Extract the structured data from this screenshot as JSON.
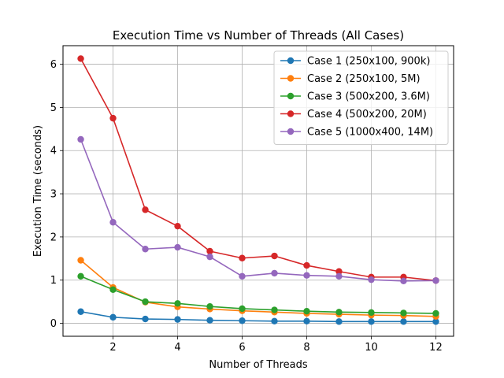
{
  "chart_data": {
    "type": "line",
    "title": "Execution Time vs Number of Threads (All Cases)",
    "xlabel": "Number of Threads",
    "ylabel": "Execution Time (seconds)",
    "xlim": [
      0.45,
      12.55
    ],
    "ylim": [
      -0.3,
      6.43
    ],
    "xticks": [
      2,
      4,
      6,
      8,
      10,
      12
    ],
    "yticks": [
      0,
      1,
      2,
      3,
      4,
      5,
      6
    ],
    "grid": true,
    "legend_position": "top-right",
    "x": [
      1,
      2,
      3,
      4,
      5,
      6,
      7,
      8,
      9,
      10,
      11,
      12
    ],
    "series": [
      {
        "name": "Case 1 (250x100, 900k)",
        "color": "#1f77b4",
        "values": [
          0.27,
          0.14,
          0.1,
          0.09,
          0.07,
          0.06,
          0.05,
          0.05,
          0.04,
          0.04,
          0.04,
          0.04
        ]
      },
      {
        "name": "Case 2 (250x100, 5M)",
        "color": "#ff7f0e",
        "values": [
          1.46,
          0.83,
          0.49,
          0.38,
          0.33,
          0.29,
          0.26,
          0.23,
          0.21,
          0.19,
          0.18,
          0.16
        ]
      },
      {
        "name": "Case 3 (500x200, 3.6M)",
        "color": "#2ca02c",
        "values": [
          1.09,
          0.78,
          0.5,
          0.46,
          0.39,
          0.34,
          0.31,
          0.28,
          0.26,
          0.25,
          0.24,
          0.23
        ]
      },
      {
        "name": "Case 4 (500x200, 20M)",
        "color": "#d62728",
        "values": [
          6.13,
          4.75,
          2.63,
          2.25,
          1.67,
          1.51,
          1.56,
          1.34,
          1.2,
          1.07,
          1.07,
          0.99
        ]
      },
      {
        "name": "Case 5 (1000x400, 14M)",
        "color": "#9467bd",
        "values": [
          4.26,
          2.34,
          1.72,
          1.76,
          1.54,
          1.09,
          1.16,
          1.11,
          1.09,
          1.01,
          0.98,
          0.99
        ]
      }
    ]
  }
}
